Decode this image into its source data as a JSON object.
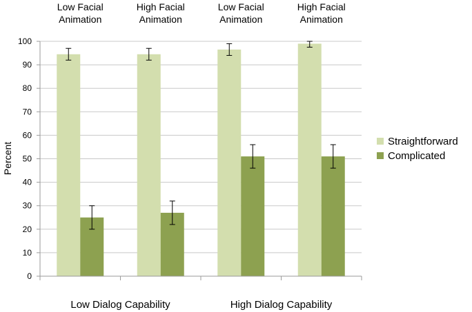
{
  "chart_data": {
    "type": "bar",
    "ylabel": "Percent",
    "ylim": [
      0,
      100
    ],
    "yticks": [
      0,
      10,
      20,
      30,
      40,
      50,
      60,
      70,
      80,
      90,
      100
    ],
    "grid": true,
    "legend_position": "right",
    "categories": [
      [
        "Low Facial",
        "Animation"
      ],
      [
        "High Facial",
        "Animation"
      ],
      [
        "Low Facial",
        "Animation"
      ],
      [
        "High Facial",
        "Animation"
      ]
    ],
    "groups": [
      "Low Dialog Capability",
      "High Dialog Capability"
    ],
    "series": [
      {
        "name": "Straightforward",
        "color": "#d3deae",
        "values": [
          94.5,
          94.5,
          96.5,
          99
        ],
        "errors": [
          2.5,
          2.5,
          2.5,
          1.5
        ]
      },
      {
        "name": "Complicated",
        "color": "#8da150",
        "values": [
          25,
          27,
          51,
          51
        ],
        "errors": [
          5,
          5,
          5,
          5
        ]
      }
    ]
  }
}
